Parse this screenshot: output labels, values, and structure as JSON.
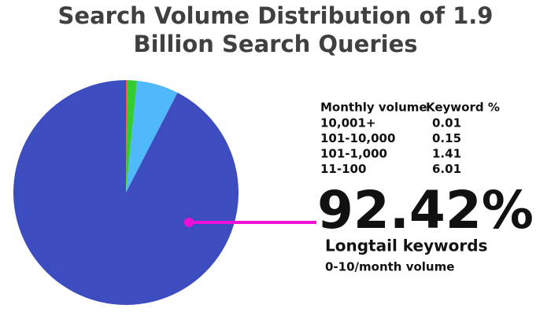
{
  "chart_data": {
    "type": "pie",
    "title": "Search Volume Distribution of 1.9 Billion Search Queries",
    "table_headers": [
      "Monthly volume",
      "Keyword %"
    ],
    "categories": [
      "10,001+",
      "101-10,000",
      "101-1,000",
      "11-100",
      "Longtail keywords"
    ],
    "values": [
      0.01,
      0.15,
      1.41,
      6.01,
      92.42
    ],
    "value_labels": [
      "0.01",
      "0.15",
      "1.41",
      "6.01",
      "92.42%"
    ],
    "colors": [
      "#f5c21b",
      "#e9452e",
      "#35cc2f",
      "#4fb9fb",
      "#3d4cbf"
    ],
    "annotation": "0-10/month volume",
    "pointer_color": "#ee10d8"
  }
}
